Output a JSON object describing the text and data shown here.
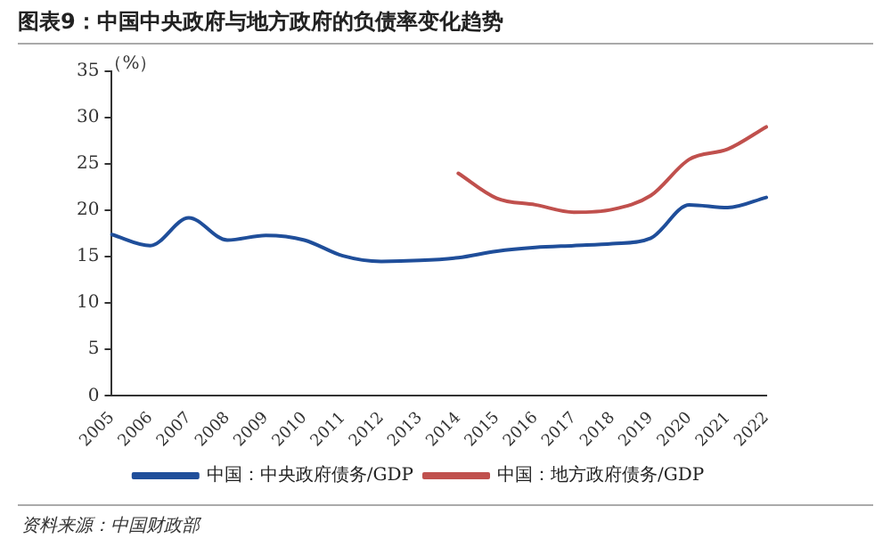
{
  "chart_data": {
    "type": "line",
    "title": "图表9：中国中央政府与地方政府的负债率变化趋势",
    "ylabel": "（%）",
    "categories": [
      "2005",
      "2006",
      "2007",
      "2008",
      "2009",
      "2010",
      "2011",
      "2012",
      "2013",
      "2014",
      "2015",
      "2016",
      "2017",
      "2018",
      "2019",
      "2020",
      "2021",
      "2022"
    ],
    "series": [
      {
        "name": "中国：中央政府债务/GDP",
        "color": "#1f4e9a",
        "values": [
          17.4,
          16.2,
          19.2,
          16.8,
          17.3,
          16.8,
          15.1,
          14.5,
          14.6,
          14.9,
          15.6,
          16.0,
          16.2,
          16.4,
          17.0,
          20.6,
          20.3,
          21.4
        ]
      },
      {
        "name": "中国：地方政府债务/GDP",
        "color": "#c0504d",
        "values": [
          null,
          null,
          null,
          null,
          null,
          null,
          null,
          null,
          null,
          24.0,
          21.3,
          20.6,
          19.8,
          20.1,
          21.6,
          25.5,
          26.6,
          29.0
        ]
      }
    ],
    "ylim": [
      0,
      35
    ],
    "yticks": [
      0,
      5,
      10,
      15,
      20,
      25,
      30,
      35
    ],
    "grid": false,
    "legend": "bottom",
    "marker": "none",
    "line_style": "solid",
    "annotations": [
      "资料来源：中国财政部"
    ]
  }
}
